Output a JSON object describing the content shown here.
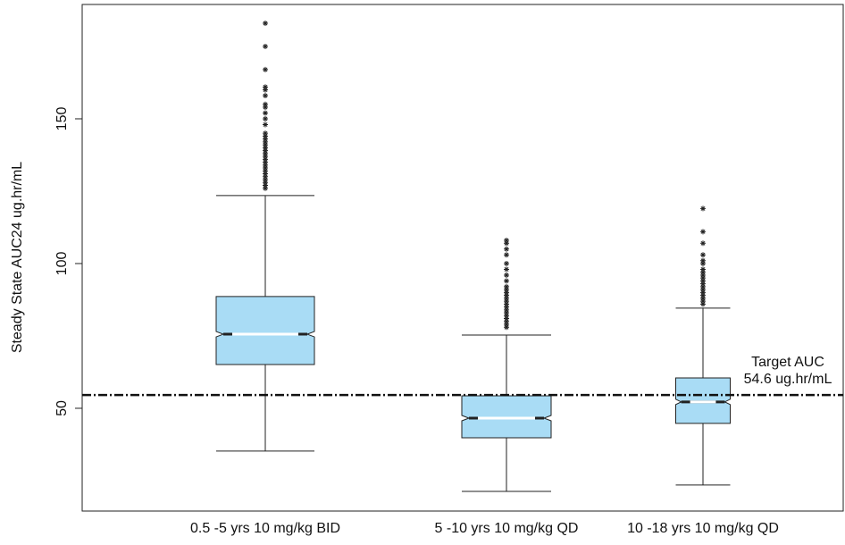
{
  "chart_data": {
    "type": "box",
    "y_label": "Steady State AUC24 ug.hr/mL",
    "categories": [
      "0.5 -5 yrs 10 mg/kg BID",
      "5 -10 yrs 10 mg/kg QD",
      "10 -18 yrs 10 mg/kg QD"
    ],
    "color": "#a9dcf5",
    "ylim": [
      14.5,
      189.5
    ],
    "yticks": [
      50,
      100,
      150
    ],
    "grid": false,
    "boxes": [
      {
        "whislo": 35.2,
        "q1": 65.1,
        "med": 75.6,
        "q3": 88.6,
        "whishi": 123.5,
        "fliers": [
          126,
          127,
          128,
          129,
          130,
          131,
          132,
          133,
          134,
          135,
          136,
          137,
          138,
          139,
          140,
          141,
          142,
          143,
          144,
          145,
          148,
          150,
          152,
          154,
          155,
          158,
          160,
          161,
          167,
          175,
          183
        ]
      },
      {
        "whislo": 21.3,
        "q1": 39.8,
        "med": 46.6,
        "q3": 54.3,
        "whishi": 75.3,
        "fliers": [
          78,
          79,
          80,
          81,
          82,
          83,
          84,
          85,
          86,
          87,
          88,
          89,
          90,
          91,
          92,
          94,
          96,
          98,
          100,
          103,
          105,
          107,
          108
        ]
      },
      {
        "whislo": 23.5,
        "q1": 44.8,
        "med": 52.2,
        "q3": 60.5,
        "whishi": 84.6,
        "fliers": [
          86,
          87,
          88,
          89,
          90,
          91,
          92,
          93,
          94,
          95,
          96,
          97,
          98,
          100,
          101,
          103,
          107,
          111,
          119
        ]
      }
    ],
    "reference_line": {
      "value": 54.6,
      "label": "Target AUC",
      "sublabel": "54.6 ug.hr/mL"
    }
  }
}
